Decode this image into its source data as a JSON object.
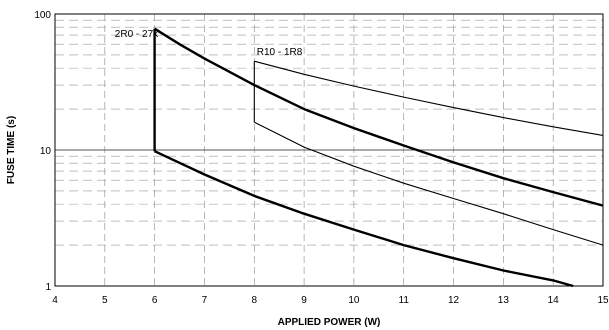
{
  "chart_data": {
    "type": "line",
    "title": "",
    "xlabel": "APPLIED POWER (W)",
    "ylabel": "FUSE TIME (s)",
    "xlim": [
      4,
      15
    ],
    "ylim": [
      1,
      100
    ],
    "y_scale": "log",
    "grid": true,
    "x_ticks": [
      "4",
      "5",
      "6",
      "7",
      "8",
      "9",
      "10",
      "11",
      "12",
      "13",
      "14",
      "15"
    ],
    "y_ticks": [
      {
        "value": 1,
        "label": "1"
      },
      {
        "value": 10,
        "label": "10"
      },
      {
        "value": 100,
        "label": "100"
      }
    ],
    "annotations": [
      {
        "text": "2R0 - 27k",
        "x": 5.2,
        "y": 68
      },
      {
        "text": "R10 - 1R8",
        "x": 8.05,
        "y": 50
      }
    ],
    "series": [
      {
        "group": "2R0 - 27k",
        "weight": "bold",
        "x": [
          6,
          6.5,
          7,
          8,
          9,
          10,
          11,
          12,
          13,
          14,
          15
        ],
        "y": [
          78,
          60,
          47,
          30,
          20,
          14.5,
          10.8,
          8.1,
          6.2,
          4.9,
          3.9
        ]
      },
      {
        "group": "2R0 - 27k",
        "weight": "bold",
        "x": [
          6,
          7,
          8,
          9,
          10,
          11,
          12,
          13,
          14,
          14.4
        ],
        "y": [
          9.8,
          6.6,
          4.6,
          3.4,
          2.6,
          2.0,
          1.6,
          1.3,
          1.1,
          1.0
        ]
      },
      {
        "group": "2R0 - 27k",
        "weight": "bold",
        "x": [
          6,
          6
        ],
        "y": [
          78,
          9.8
        ]
      },
      {
        "group": "R10 - 1R8",
        "weight": "thin",
        "x": [
          8,
          9,
          10,
          11,
          12,
          13,
          14,
          15
        ],
        "y": [
          45,
          36,
          29.5,
          24.5,
          20.5,
          17.3,
          14.8,
          12.8
        ]
      },
      {
        "group": "R10 - 1R8",
        "weight": "thin",
        "x": [
          8,
          9,
          10,
          11,
          12,
          13,
          14,
          15
        ],
        "y": [
          16,
          10.5,
          7.6,
          5.7,
          4.4,
          3.4,
          2.6,
          2.0
        ]
      },
      {
        "group": "R10 - 1R8",
        "weight": "thin",
        "x": [
          8,
          8
        ],
        "y": [
          45,
          16
        ]
      }
    ]
  }
}
